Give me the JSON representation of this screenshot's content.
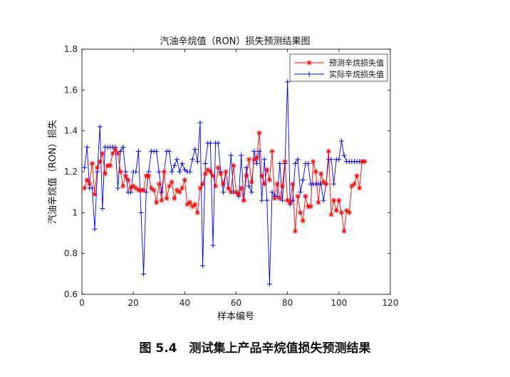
{
  "figure_caption": "图 5.4　测试集上产品辛烷值损失预测结果",
  "chart_data": {
    "type": "line",
    "title": "汽油辛烷值（RON）损失预测结果图",
    "xlabel": "样本编号",
    "ylabel": "汽油辛烷值（RON）损失",
    "xlim": [
      0,
      120
    ],
    "ylim": [
      0.6,
      1.8
    ],
    "xticks": [
      0,
      20,
      40,
      60,
      80,
      100,
      120
    ],
    "yticks": [
      0.6,
      0.8,
      1,
      1.2,
      1.4,
      1.6,
      1.8
    ],
    "grid": false,
    "legend_position": "top-right",
    "x": [
      1,
      2,
      3,
      4,
      5,
      6,
      7,
      8,
      9,
      10,
      11,
      12,
      13,
      14,
      15,
      16,
      17,
      18,
      19,
      20,
      21,
      22,
      23,
      24,
      25,
      26,
      27,
      28,
      29,
      30,
      31,
      32,
      33,
      34,
      35,
      36,
      37,
      38,
      39,
      40,
      41,
      42,
      43,
      44,
      45,
      46,
      47,
      48,
      49,
      50,
      51,
      52,
      53,
      54,
      55,
      56,
      57,
      58,
      59,
      60,
      61,
      62,
      63,
      64,
      65,
      66,
      67,
      68,
      69,
      70,
      71,
      72,
      73,
      74,
      75,
      76,
      77,
      78,
      79,
      80,
      81,
      82,
      83,
      84,
      85,
      86,
      87,
      88,
      89,
      90,
      91,
      92,
      93,
      94,
      95,
      96,
      97,
      98,
      99,
      100,
      101,
      102,
      103,
      104,
      105,
      106,
      107,
      108,
      109,
      110
    ],
    "series": [
      {
        "name": "预测辛烷损失值",
        "color": "#ff0000",
        "marker": "asterisk",
        "values": [
          1.12,
          1.16,
          1.14,
          1.24,
          1.09,
          1.22,
          1.25,
          1.29,
          1.19,
          1.23,
          1.23,
          1.29,
          1.31,
          1.29,
          1.2,
          1.13,
          1.18,
          1.16,
          1.12,
          1.13,
          1.12,
          1.11,
          1.11,
          1.11,
          1.18,
          1.18,
          1.12,
          1.11,
          1.05,
          1.14,
          1.06,
          1.2,
          1.07,
          1.13,
          1.15,
          1.07,
          1.11,
          1.1,
          1.12,
          1.16,
          1.04,
          1.05,
          1.03,
          1.04,
          1.0,
          1.12,
          1.14,
          1.19,
          1.21,
          1.2,
          1.18,
          1.13,
          1.22,
          1.19,
          1.14,
          1.2,
          1.12,
          1.1,
          1.23,
          1.1,
          1.09,
          1.12,
          1.06,
          1.18,
          1.26,
          1.15,
          1.26,
          1.27,
          1.39,
          1.18,
          1.14,
          1.21,
          1.16,
          1.3,
          1.07,
          1.14,
          1.07,
          1.13,
          1.25,
          1.06,
          1.05,
          1.14,
          0.91,
          1.08,
          1.0,
          0.96,
          1.08,
          1.03,
          1.03,
          1.25,
          1.2,
          1.05,
          1.19,
          1.15,
          1.14,
          1.3,
          0.99,
          1.06,
          1.01,
          1.06,
          1.0,
          0.91,
          1.01,
          1.0,
          1.13,
          1.14,
          1.18,
          1.12,
          1.25,
          1.25
        ]
      },
      {
        "name": "实际辛烷损失值",
        "color": "#0000ff",
        "marker": "plus",
        "values": [
          1.22,
          1.32,
          1.12,
          1.12,
          0.92,
          1.2,
          1.42,
          1.02,
          1.32,
          1.32,
          1.32,
          1.32,
          1.32,
          1.12,
          1.3,
          1.32,
          1.2,
          1.1,
          1.1,
          1.2,
          1.2,
          1.3,
          1.0,
          0.7,
          1.1,
          1.2,
          1.3,
          1.3,
          1.3,
          1.2,
          1.1,
          1.2,
          1.3,
          1.3,
          1.2,
          1.23,
          1.26,
          1.2,
          1.24,
          1.21,
          1.2,
          1.2,
          1.26,
          1.31,
          1.25,
          1.44,
          0.74,
          1.24,
          1.34,
          1.34,
          0.84,
          1.34,
          1.34,
          1.2,
          1.1,
          1.2,
          1.12,
          1.28,
          1.1,
          1.1,
          1.08,
          1.28,
          1.06,
          1.22,
          1.13,
          1.1,
          1.3,
          1.24,
          1.3,
          1.06,
          1.26,
          1.06,
          0.65,
          1.1,
          1.08,
          1.08,
          1.24,
          1.06,
          1.24,
          1.64,
          1.04,
          1.06,
          1.24,
          1.26,
          1.1,
          1.16,
          1.24,
          1.24,
          1.14,
          1.14,
          1.14,
          1.14,
          1.14,
          1.06,
          1.14,
          1.26,
          1.26,
          1.14,
          1.26,
          1.26,
          1.35,
          1.28,
          1.25,
          1.25,
          1.25,
          1.25,
          1.25,
          1.25,
          1.25,
          1.25
        ]
      }
    ]
  }
}
